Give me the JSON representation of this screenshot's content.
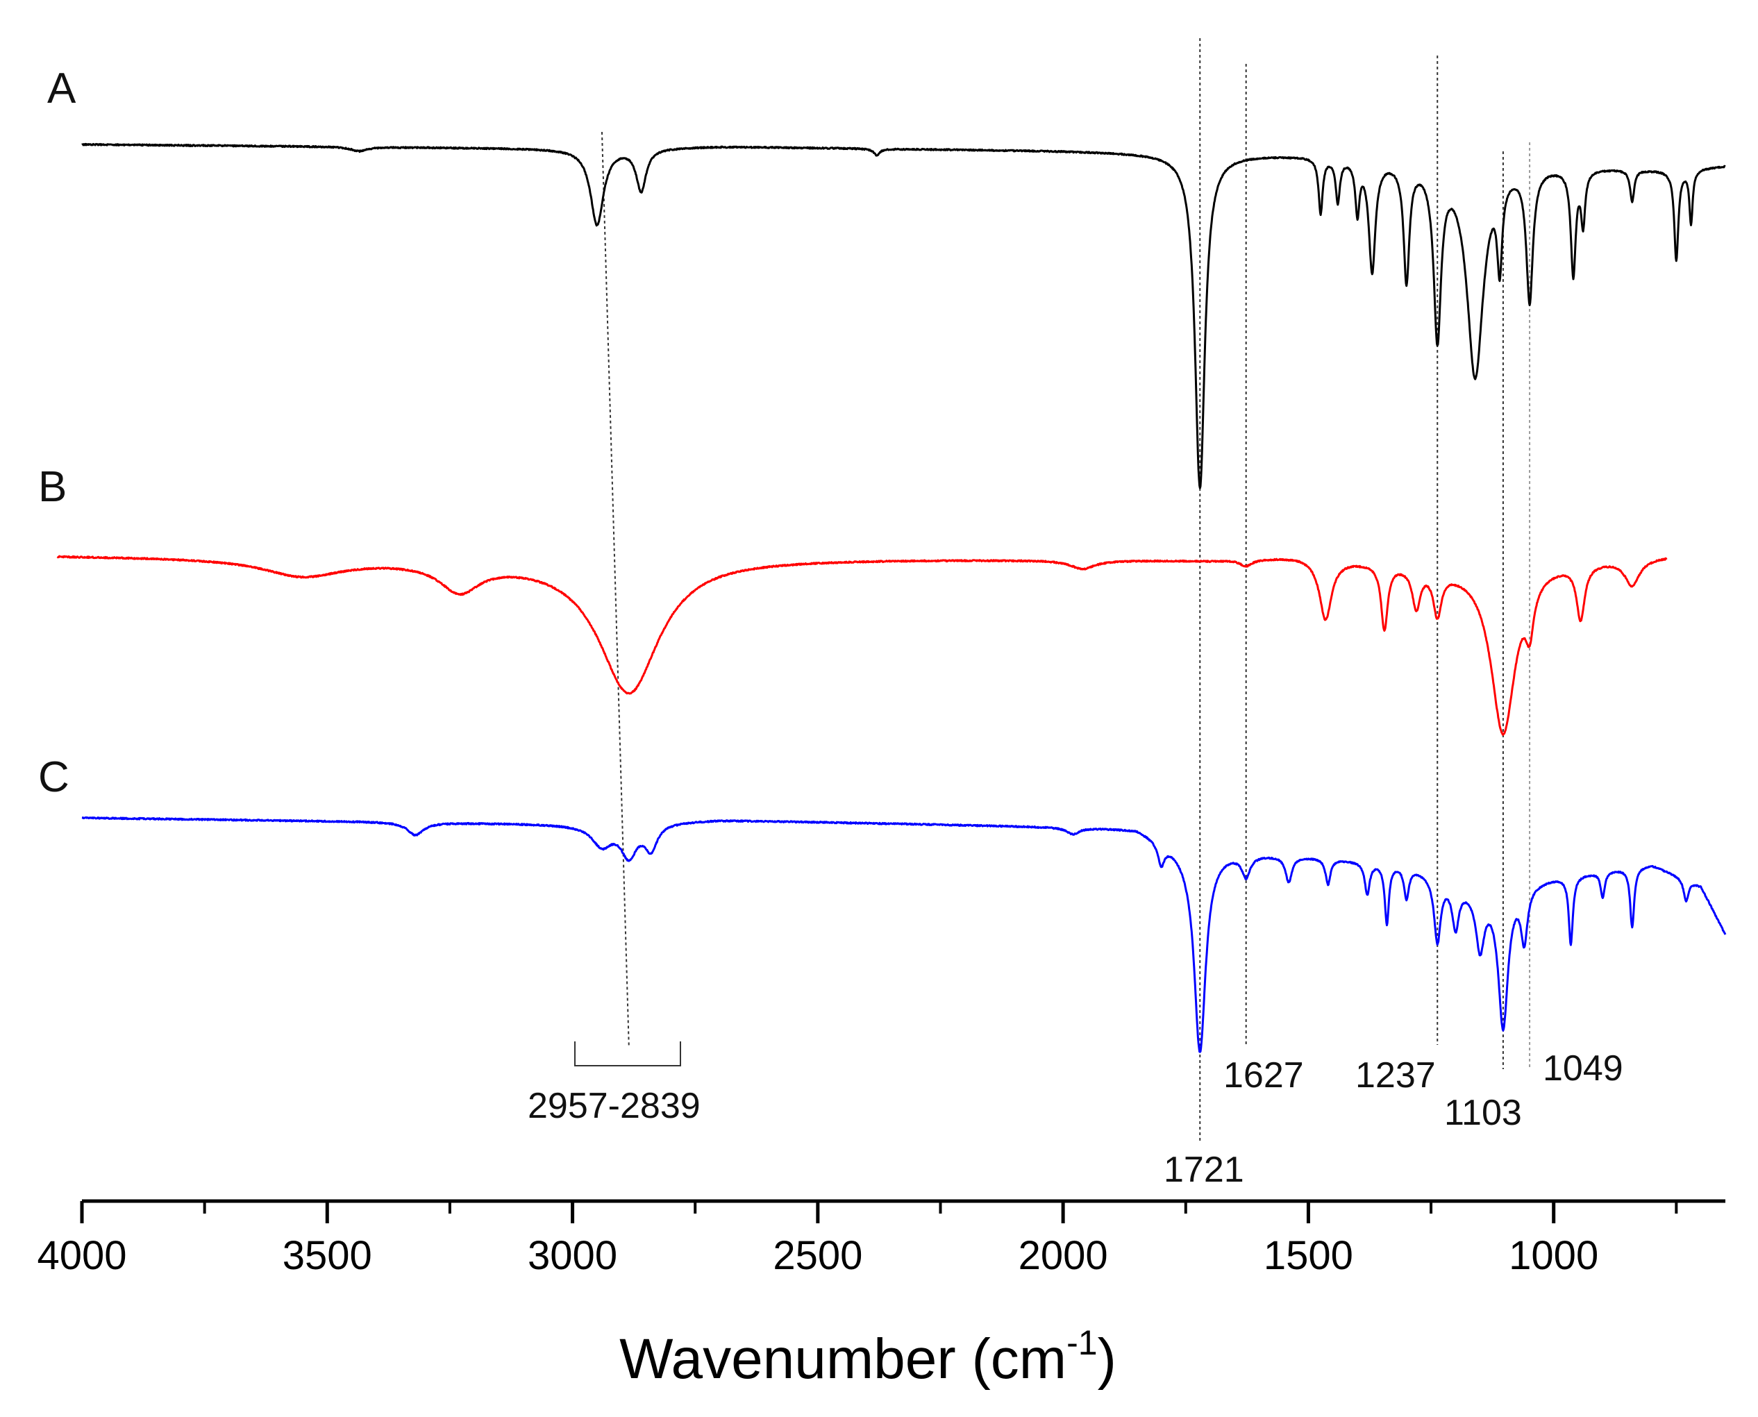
{
  "chart_data": {
    "type": "line",
    "title": "",
    "xlabel": "Wavenumber (cm",
    "xlabel_sup": "-1",
    "xlabel_close": ")",
    "ylabel": "",
    "xlim": [
      4000,
      650
    ],
    "x_reversed": true,
    "grid": false,
    "x_ticks": [
      4000,
      3500,
      3000,
      2500,
      2000,
      1500,
      1000
    ],
    "x_tick_labels": [
      "4000",
      "3500",
      "3000",
      "2500",
      "2000",
      "1500",
      "1000"
    ],
    "series": [
      {
        "name": "A",
        "color": "#000000",
        "x_range": [
          4000,
          650
        ],
        "baseline": 0.0,
        "trend": [
          [
            4000,
            0.0
          ],
          [
            3000,
            0.02
          ],
          [
            2700,
            0.01
          ],
          [
            2000,
            0.03
          ],
          [
            1800,
            0.04
          ],
          [
            1500,
            0.05
          ],
          [
            1000,
            0.1
          ],
          [
            750,
            0.12
          ],
          [
            650,
            0.1
          ]
        ],
        "peaks": [
          {
            "x": 3435,
            "depth": 0.02,
            "width": 20
          },
          {
            "x": 2950,
            "depth": 0.36,
            "width": 16
          },
          {
            "x": 2860,
            "depth": 0.2,
            "width": 12
          },
          {
            "x": 2380,
            "depth": 0.03,
            "width": 8
          },
          {
            "x": 1721,
            "depth": 1.58,
            "width": 12
          },
          {
            "x": 1475,
            "depth": 0.26,
            "width": 5
          },
          {
            "x": 1440,
            "depth": 0.2,
            "width": 5
          },
          {
            "x": 1400,
            "depth": 0.24,
            "width": 5
          },
          {
            "x": 1370,
            "depth": 0.52,
            "width": 8
          },
          {
            "x": 1300,
            "depth": 0.55,
            "width": 7
          },
          {
            "x": 1237,
            "depth": 0.8,
            "width": 9
          },
          {
            "x": 1160,
            "depth": 1.0,
            "width": 20
          },
          {
            "x": 1110,
            "depth": 0.4,
            "width": 6
          },
          {
            "x": 1049,
            "depth": 0.62,
            "width": 8
          },
          {
            "x": 960,
            "depth": 0.5,
            "width": 6
          },
          {
            "x": 940,
            "depth": 0.25,
            "width": 5
          },
          {
            "x": 840,
            "depth": 0.15,
            "width": 5
          },
          {
            "x": 750,
            "depth": 0.42,
            "width": 5
          },
          {
            "x": 720,
            "depth": 0.25,
            "width": 4
          }
        ]
      },
      {
        "name": "B",
        "color": "#ff0000",
        "x_range": [
          4050,
          770
        ],
        "baseline": 0.0,
        "trend": [
          [
            4050,
            0.0
          ],
          [
            3000,
            0.02
          ],
          [
            2700,
            0.01
          ],
          [
            1700,
            0.02
          ],
          [
            1520,
            0.0
          ],
          [
            1200,
            0.05
          ],
          [
            770,
            0.0
          ]
        ],
        "peaks": [
          {
            "x": 3550,
            "depth": 0.08,
            "width": 100
          },
          {
            "x": 3230,
            "depth": 0.13,
            "width": 50
          },
          {
            "x": 2885,
            "depth": 0.62,
            "width": 75
          },
          {
            "x": 1960,
            "depth": 0.04,
            "width": 30
          },
          {
            "x": 1627,
            "depth": 0.03,
            "width": 15
          },
          {
            "x": 1465,
            "depth": 0.28,
            "width": 15
          },
          {
            "x": 1345,
            "depth": 0.3,
            "width": 8
          },
          {
            "x": 1280,
            "depth": 0.18,
            "width": 10
          },
          {
            "x": 1237,
            "depth": 0.2,
            "width": 10
          },
          {
            "x": 1103,
            "depth": 0.78,
            "width": 30
          },
          {
            "x": 1049,
            "depth": 0.2,
            "width": 10
          },
          {
            "x": 945,
            "depth": 0.25,
            "width": 10
          },
          {
            "x": 840,
            "depth": 0.12,
            "width": 18
          }
        ]
      },
      {
        "name": "C",
        "color": "#0000ff",
        "x_range": [
          4000,
          650
        ],
        "baseline": 0.0,
        "trend": [
          [
            4000,
            0.0
          ],
          [
            3000,
            0.03
          ],
          [
            2700,
            0.01
          ],
          [
            1850,
            0.05
          ],
          [
            1750,
            0.15
          ],
          [
            1500,
            0.18
          ],
          [
            1300,
            0.22
          ],
          [
            1150,
            0.35
          ],
          [
            1000,
            0.28
          ],
          [
            800,
            0.22
          ],
          [
            700,
            0.32
          ],
          [
            650,
            0.55
          ]
        ],
        "peaks": [
          {
            "x": 3320,
            "depth": 0.06,
            "width": 20
          },
          {
            "x": 2940,
            "depth": 0.1,
            "width": 25
          },
          {
            "x": 2885,
            "depth": 0.15,
            "width": 20
          },
          {
            "x": 2840,
            "depth": 0.12,
            "width": 15
          },
          {
            "x": 1980,
            "depth": 0.03,
            "width": 15
          },
          {
            "x": 1800,
            "depth": 0.1,
            "width": 8
          },
          {
            "x": 1721,
            "depth": 0.95,
            "width": 14
          },
          {
            "x": 1627,
            "depth": 0.1,
            "width": 10
          },
          {
            "x": 1540,
            "depth": 0.12,
            "width": 8
          },
          {
            "x": 1460,
            "depth": 0.12,
            "width": 6
          },
          {
            "x": 1380,
            "depth": 0.15,
            "width": 6
          },
          {
            "x": 1340,
            "depth": 0.28,
            "width": 5
          },
          {
            "x": 1300,
            "depth": 0.15,
            "width": 6
          },
          {
            "x": 1237,
            "depth": 0.3,
            "width": 8
          },
          {
            "x": 1200,
            "depth": 0.2,
            "width": 8
          },
          {
            "x": 1150,
            "depth": 0.25,
            "width": 10
          },
          {
            "x": 1103,
            "depth": 0.65,
            "width": 12
          },
          {
            "x": 1060,
            "depth": 0.25,
            "width": 8
          },
          {
            "x": 965,
            "depth": 0.32,
            "width": 5
          },
          {
            "x": 900,
            "depth": 0.12,
            "width": 5
          },
          {
            "x": 840,
            "depth": 0.28,
            "width": 5
          },
          {
            "x": 730,
            "depth": 0.1,
            "width": 6
          }
        ]
      }
    ],
    "panel_labels": [
      "A",
      "B",
      "C"
    ],
    "reference_lines": [
      2900,
      1721,
      1627,
      1237,
      1103,
      1049
    ],
    "annotations": [
      {
        "text": "2957-2839",
        "x": 2885,
        "range": [
          2957,
          2839
        ]
      },
      {
        "text": "1721",
        "x": 1721
      },
      {
        "text": "1627",
        "x": 1627
      },
      {
        "text": "1237",
        "x": 1237
      },
      {
        "text": "1103",
        "x": 1103
      },
      {
        "text": "1049",
        "x": 1049
      }
    ]
  }
}
